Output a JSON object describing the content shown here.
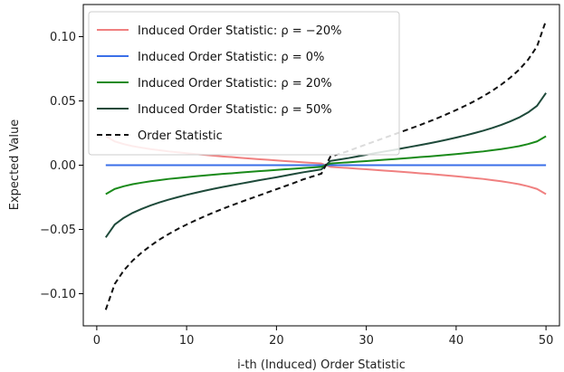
{
  "chart_data": {
    "type": "line",
    "title": "",
    "xlabel": "i-th (Induced) Order Statistic",
    "ylabel": "Expected Value",
    "xlim": [
      -1.5,
      51.5
    ],
    "ylim": [
      -0.125,
      0.125
    ],
    "xticks": [
      0,
      10,
      20,
      30,
      40,
      50
    ],
    "xtick_labels": [
      "0",
      "10",
      "20",
      "30",
      "40",
      "50"
    ],
    "yticks": [
      -0.1,
      -0.05,
      0.0,
      0.05,
      0.1
    ],
    "ytick_labels": [
      "−0.10",
      "−0.05",
      "0.00",
      "0.05",
      "0.10"
    ],
    "grid": false,
    "legend_position": "top-left",
    "x": [
      1,
      2,
      3,
      4,
      5,
      6,
      7,
      8,
      9,
      10,
      11,
      12,
      13,
      14,
      15,
      16,
      17,
      18,
      19,
      20,
      21,
      22,
      23,
      24,
      25,
      26,
      27,
      28,
      29,
      30,
      31,
      32,
      33,
      34,
      35,
      36,
      37,
      38,
      39,
      40,
      41,
      42,
      43,
      44,
      45,
      46,
      47,
      48,
      49,
      50
    ],
    "series": [
      {
        "name": "Induced Order Statistic: ρ = −20%",
        "color": "#f08080",
        "dash": "solid",
        "values": [
          0.0225,
          0.0185,
          0.0164,
          0.0148,
          0.0136,
          0.0125,
          0.0116,
          0.0107,
          0.01,
          0.0093,
          0.0086,
          0.008,
          0.0074,
          0.0068,
          0.0063,
          0.0057,
          0.0052,
          0.0047,
          0.0042,
          0.0037,
          0.0032,
          0.0027,
          0.0022,
          0.0018,
          0.0013,
          -0.0013,
          -0.0018,
          -0.0022,
          -0.0027,
          -0.0032,
          -0.0037,
          -0.0042,
          -0.0047,
          -0.0052,
          -0.0057,
          -0.0063,
          -0.0068,
          -0.0074,
          -0.008,
          -0.0086,
          -0.0093,
          -0.01,
          -0.0107,
          -0.0116,
          -0.0125,
          -0.0136,
          -0.0148,
          -0.0164,
          -0.0185,
          -0.0225
        ]
      },
      {
        "name": "Induced Order Statistic: ρ = 0%",
        "color": "#3a6fe8",
        "dash": "solid",
        "values": [
          0,
          0,
          0,
          0,
          0,
          0,
          0,
          0,
          0,
          0,
          0,
          0,
          0,
          0,
          0,
          0,
          0,
          0,
          0,
          0,
          0,
          0,
          0,
          0,
          0,
          0,
          0,
          0,
          0,
          0,
          0,
          0,
          0,
          0,
          0,
          0,
          0,
          0,
          0,
          0,
          0,
          0,
          0,
          0,
          0,
          0,
          0,
          0,
          0,
          0
        ]
      },
      {
        "name": "Induced Order Statistic: ρ = 20%",
        "color": "#1a8a1a",
        "dash": "solid",
        "values": [
          -0.0225,
          -0.0185,
          -0.0164,
          -0.0148,
          -0.0136,
          -0.0125,
          -0.0116,
          -0.0107,
          -0.01,
          -0.0093,
          -0.0086,
          -0.008,
          -0.0074,
          -0.0068,
          -0.0063,
          -0.0057,
          -0.0052,
          -0.0047,
          -0.0042,
          -0.0037,
          -0.0032,
          -0.0027,
          -0.0022,
          -0.0018,
          -0.0013,
          0.0013,
          0.0018,
          0.0022,
          0.0027,
          0.0032,
          0.0037,
          0.0042,
          0.0047,
          0.0052,
          0.0057,
          0.0063,
          0.0068,
          0.0074,
          0.008,
          0.0086,
          0.0093,
          0.01,
          0.0107,
          0.0116,
          0.0125,
          0.0136,
          0.0148,
          0.0164,
          0.0185,
          0.0225
        ]
      },
      {
        "name": "Induced Order Statistic: ρ = 50%",
        "color": "#1e4a3a",
        "dash": "solid",
        "values": [
          -0.0562,
          -0.0462,
          -0.041,
          -0.0371,
          -0.034,
          -0.0313,
          -0.0289,
          -0.0268,
          -0.0249,
          -0.0231,
          -0.0215,
          -0.0199,
          -0.0184,
          -0.017,
          -0.0157,
          -0.0144,
          -0.0131,
          -0.0118,
          -0.0106,
          -0.0094,
          -0.0081,
          -0.0068,
          -0.0055,
          -0.0044,
          -0.0033,
          0.0033,
          0.0044,
          0.0055,
          0.0068,
          0.0081,
          0.0094,
          0.0106,
          0.0118,
          0.0131,
          0.0144,
          0.0157,
          0.017,
          0.0184,
          0.0199,
          0.0215,
          0.0231,
          0.0249,
          0.0268,
          0.0289,
          0.0313,
          0.034,
          0.0371,
          0.041,
          0.0462,
          0.0562
        ]
      },
      {
        "name": "Order Statistic",
        "color": "#111111",
        "dash": "dashed",
        "values": [
          -0.1125,
          -0.0924,
          -0.082,
          -0.0742,
          -0.068,
          -0.0626,
          -0.0578,
          -0.0536,
          -0.0497,
          -0.0462,
          -0.0429,
          -0.0398,
          -0.0368,
          -0.034,
          -0.0313,
          -0.0287,
          -0.0262,
          -0.0237,
          -0.0212,
          -0.0187,
          -0.0162,
          -0.0137,
          -0.011,
          -0.0088,
          -0.0066,
          0.0066,
          0.0088,
          0.011,
          0.0137,
          0.0162,
          0.0187,
          0.0212,
          0.0237,
          0.0262,
          0.0287,
          0.0313,
          0.034,
          0.0368,
          0.0398,
          0.0429,
          0.0462,
          0.0497,
          0.0536,
          0.0578,
          0.0626,
          0.068,
          0.0742,
          0.082,
          0.0924,
          0.1125
        ]
      }
    ]
  }
}
